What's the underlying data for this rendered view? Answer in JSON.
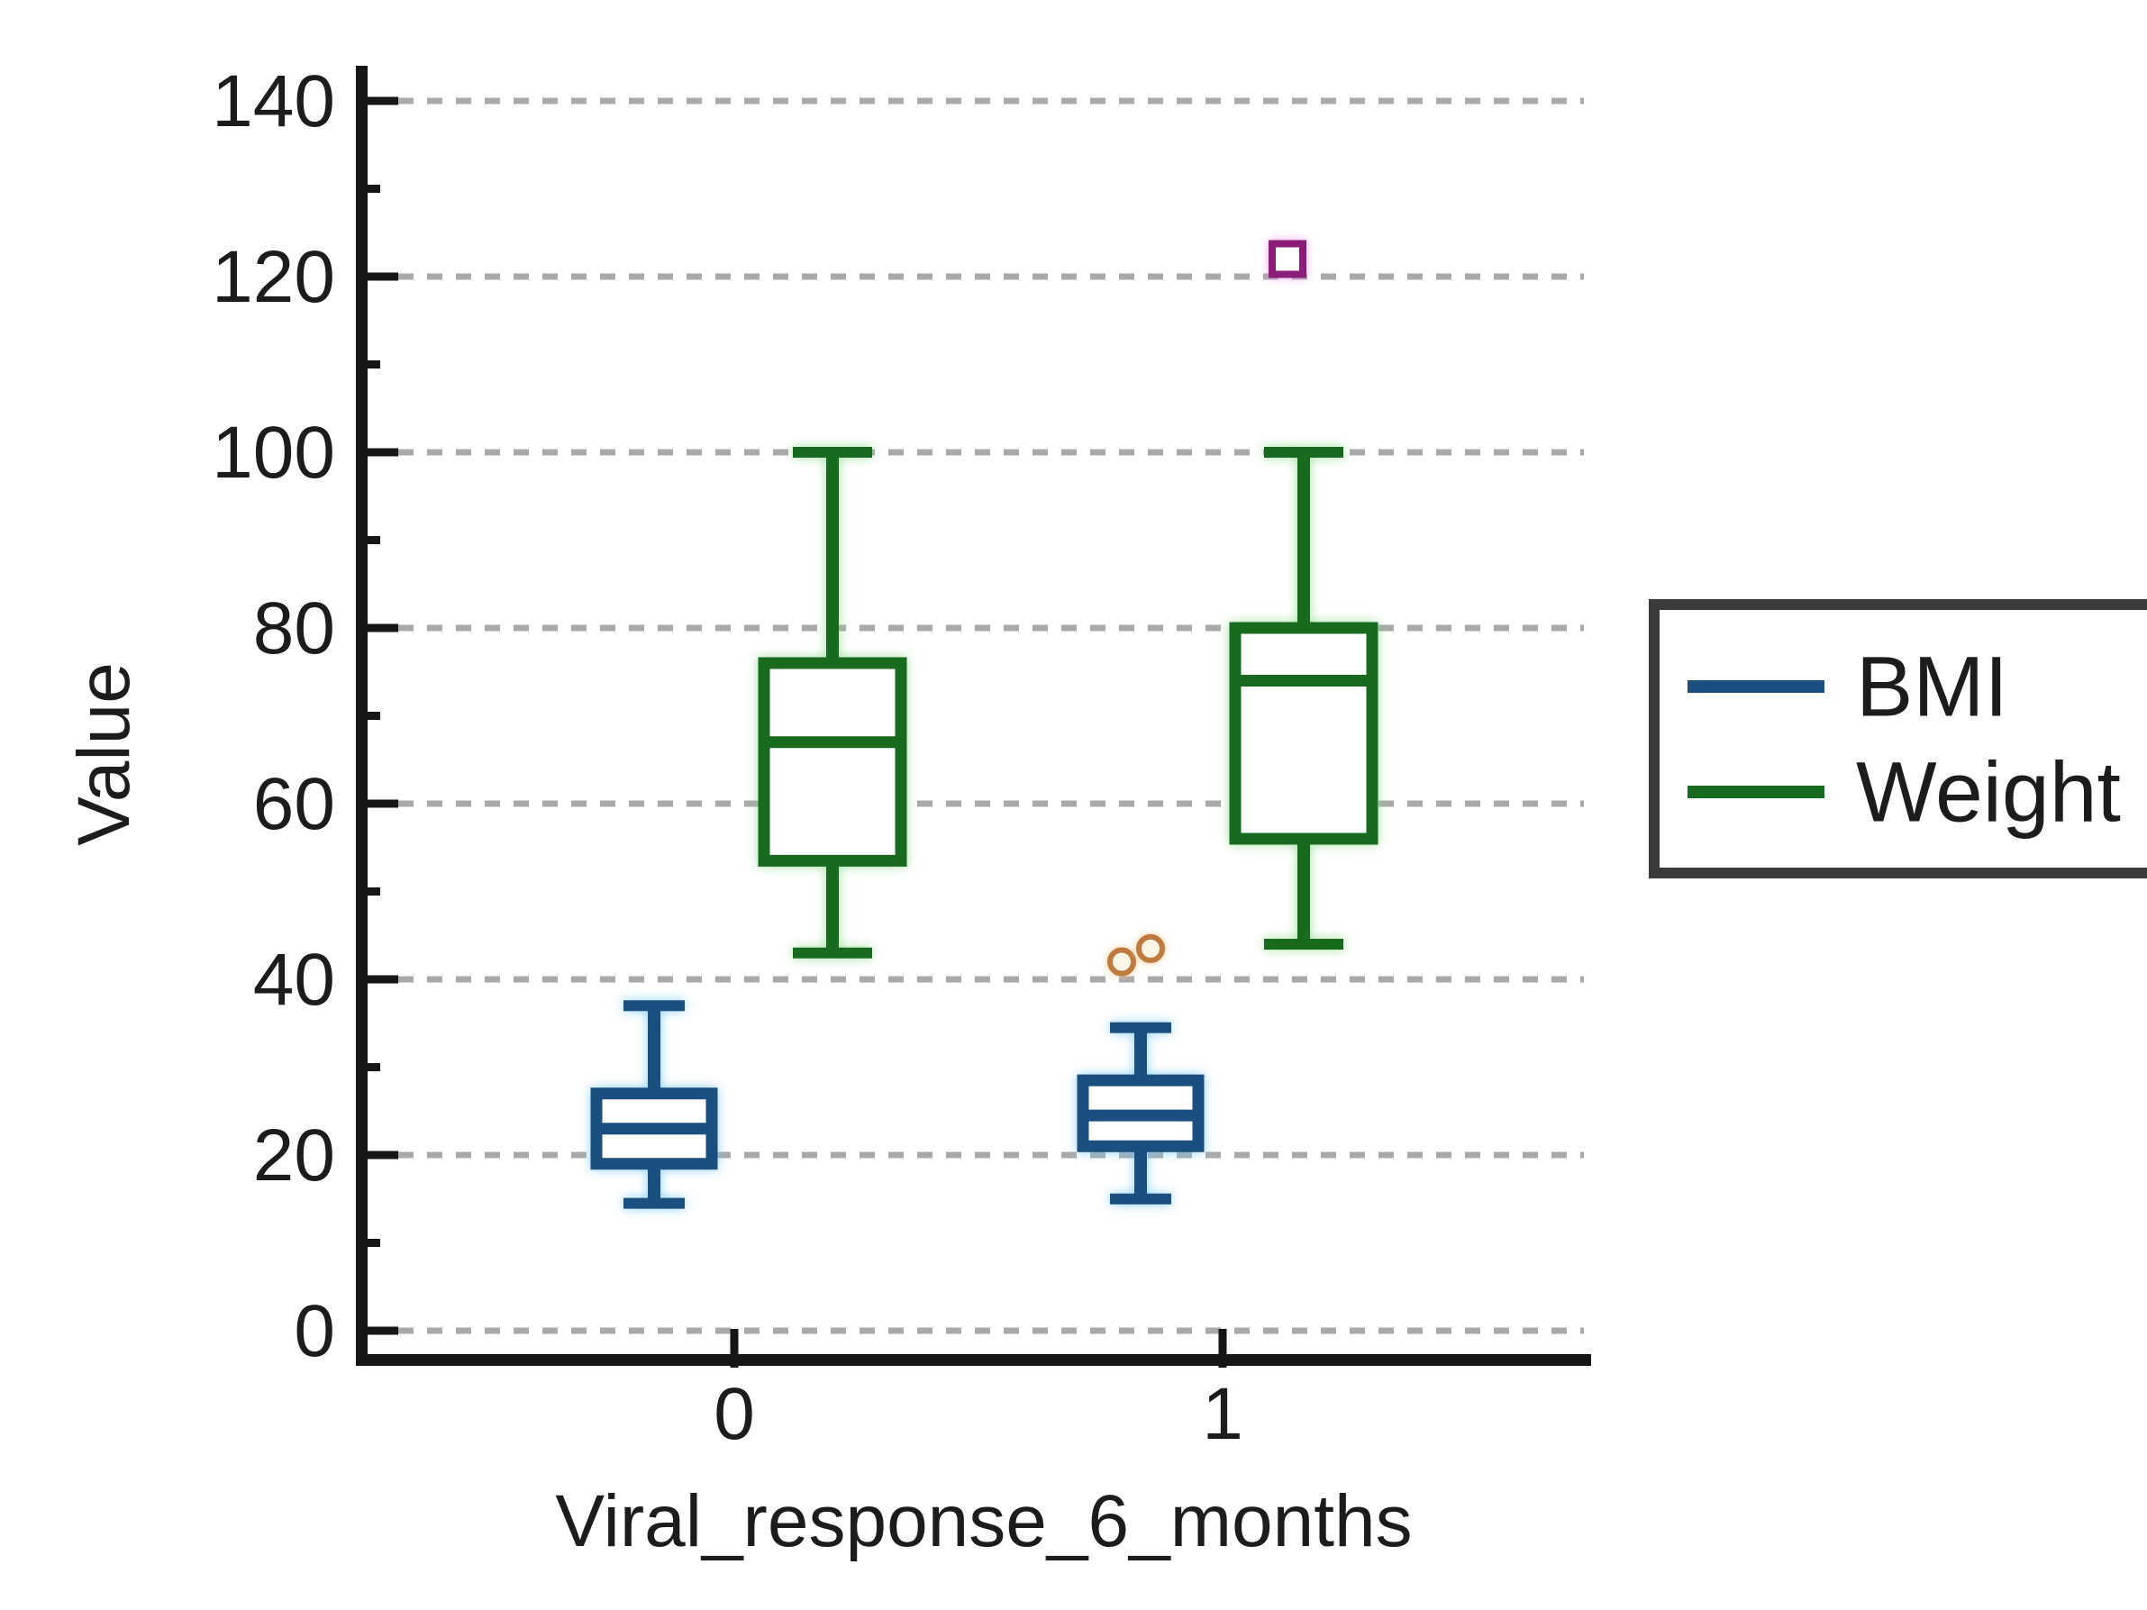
{
  "figure": {
    "background": "#ffffff"
  },
  "chart_data": {
    "type": "boxplot",
    "title": "",
    "xlabel": "Viral_response_6_months",
    "ylabel": "Value",
    "categories": [
      "0",
      "1"
    ],
    "y_axis": {
      "min": 0,
      "max": 140,
      "major_ticks": [
        0,
        20,
        40,
        60,
        80,
        100,
        120,
        140
      ],
      "minor_tick_step": 10,
      "gridlines": "dashed-horizontal-at-major-ticks",
      "grid_color": "#a9a9a9",
      "axis_color": "#161616",
      "text_color": "#1c1c1c"
    },
    "series": [
      {
        "name": "BMI",
        "color": "#1b4f80",
        "boxes": [
          {
            "category": "0",
            "whisker_low": 14.5,
            "q1": 19,
            "median": 23,
            "q3": 27,
            "whisker_high": 37,
            "outliers": []
          },
          {
            "category": "1",
            "whisker_low": 15,
            "q1": 21,
            "median": 24.5,
            "q3": 28.5,
            "whisker_high": 34.5,
            "outliers": [
              {
                "value": 42,
                "marker": "circle",
                "color": "#bf7a40"
              },
              {
                "value": 43.5,
                "marker": "circle",
                "color": "#bf7a40"
              }
            ]
          }
        ]
      },
      {
        "name": "Weight",
        "color": "#186a1e",
        "boxes": [
          {
            "category": "0",
            "whisker_low": 43,
            "q1": 53.5,
            "median": 67,
            "q3": 76,
            "whisker_high": 100,
            "outliers": []
          },
          {
            "category": "1",
            "whisker_low": 44,
            "q1": 56,
            "median": 74,
            "q3": 80,
            "whisker_high": 100,
            "outliers": [
              {
                "value": 122,
                "marker": "square",
                "color": "#8b1d78"
              }
            ]
          }
        ]
      }
    ],
    "legend": {
      "position": "right-middle",
      "border_color": "#3b3b3b",
      "entries": [
        {
          "label": "BMI",
          "color": "#1b4f80"
        },
        {
          "label": "Weight",
          "color": "#186a1e"
        }
      ]
    }
  }
}
